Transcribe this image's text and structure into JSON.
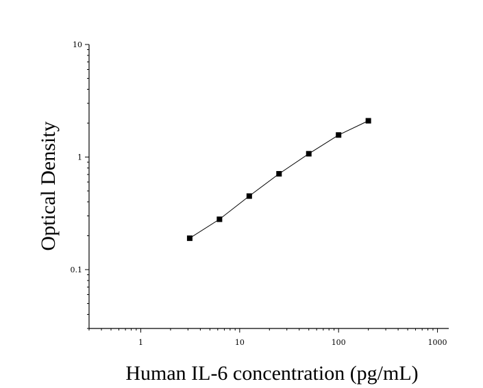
{
  "chart_data": {
    "type": "scatter",
    "xlabel": "Human IL-6 concentration (pg/mL)",
    "ylabel": "Optical Density",
    "xscale": "log",
    "yscale": "log",
    "xlim": [
      0.3,
      1300
    ],
    "ylim": [
      0.03,
      10
    ],
    "x_ticks": [
      1,
      10,
      100,
      1000
    ],
    "x_tick_labels": [
      "1",
      "10",
      "100",
      "1000"
    ],
    "y_ticks": [
      0.1,
      1,
      10
    ],
    "y_tick_labels": [
      "0.1",
      "1",
      "10"
    ],
    "grid": false,
    "legend": "none",
    "marker": "square",
    "color": "#000000",
    "series": [
      {
        "x": [
          3.125,
          6.25,
          12.5,
          25,
          50,
          100,
          200
        ],
        "y": [
          0.19,
          0.28,
          0.45,
          0.71,
          1.07,
          1.57,
          2.1
        ],
        "fit_line": true
      }
    ]
  }
}
